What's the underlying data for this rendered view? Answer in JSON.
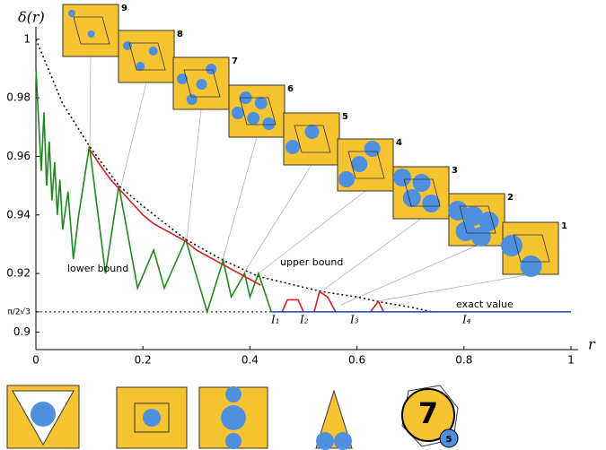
{
  "chart_data": {
    "type": "line",
    "y_label": "δ(r)",
    "x_label": "r",
    "xlim": [
      0,
      1
    ],
    "ylim": [
      0.894,
      1.003
    ],
    "xticks": [
      0,
      0.2,
      0.4,
      0.6,
      0.8,
      1
    ],
    "yticks": [
      0.9,
      0.92,
      0.94,
      0.96,
      0.98,
      1,
      {
        "value": 0.9069,
        "label": "π/2√3"
      }
    ],
    "series": [
      {
        "color": "#000000",
        "dash": true,
        "x": [
          0,
          0.05,
          0.1,
          0.155,
          0.2,
          0.28,
          0.35,
          0.416,
          0.5,
          0.535,
          0.6,
          0.64,
          0.7,
          0.74
        ],
        "values": [
          1,
          0.978,
          0.9635,
          0.95,
          0.943,
          0.9316,
          0.9245,
          0.919,
          0.9153,
          0.9138,
          0.912,
          0.9104,
          0.9085,
          0.9069
        ]
      },
      {
        "name": "lower bound",
        "color": "#1e8a1e",
        "x": [
          0,
          0.01,
          0.015,
          0.02,
          0.025,
          0.03,
          0.035,
          0.04,
          0.045,
          0.05,
          0.06,
          0.07,
          0.08,
          0.1,
          0.13,
          0.155,
          0.19,
          0.22,
          0.24,
          0.28,
          0.32,
          0.35,
          0.365,
          0.39,
          0.4,
          0.416,
          0.44
        ],
        "values": [
          0.99,
          0.955,
          0.975,
          0.95,
          0.965,
          0.945,
          0.958,
          0.94,
          0.952,
          0.935,
          0.948,
          0.925,
          0.94,
          0.9635,
          0.92,
          0.95,
          0.915,
          0.928,
          0.915,
          0.9316,
          0.9069,
          0.9245,
          0.912,
          0.92,
          0.912,
          0.92,
          0.9069
        ]
      },
      {
        "name": "upper bound",
        "color": "#d42020",
        "x": [
          0.1,
          0.12,
          0.14,
          0.16,
          0.18,
          0.2,
          0.22,
          0.24,
          0.26,
          0.28,
          0.3,
          0.32,
          0.34,
          0.36,
          0.38,
          0.4,
          0.42,
          0.43,
          0.46,
          0.47,
          0.49,
          0.5,
          0.51,
          0.52,
          0.53,
          0.545,
          0.56,
          0.6,
          0.625,
          0.64,
          0.65
        ],
        "values": [
          0.9625,
          0.957,
          0.952,
          0.948,
          0.944,
          0.94,
          0.937,
          0.935,
          0.933,
          0.931,
          0.928,
          0.926,
          0.924,
          0.922,
          0.92,
          0.918,
          0.916,
          null,
          0.9069,
          0.911,
          0.911,
          0.9069,
          null,
          0.9069,
          0.9138,
          0.912,
          0.9069,
          null,
          0.9069,
          0.9104,
          0.9069
        ]
      },
      {
        "name": "exact value",
        "color": "#2040c0",
        "x": [
          0.44,
          1
        ],
        "values": [
          0.9069,
          0.9069
        ]
      }
    ],
    "interval_labels": [
      "I₁",
      "I₂",
      "I₃",
      "I₄"
    ],
    "inset_labels": [
      "9",
      "8",
      "7",
      "6",
      "5",
      "4",
      "3",
      "2",
      "1"
    ],
    "bottom_labels": [
      "7",
      "5"
    ]
  }
}
